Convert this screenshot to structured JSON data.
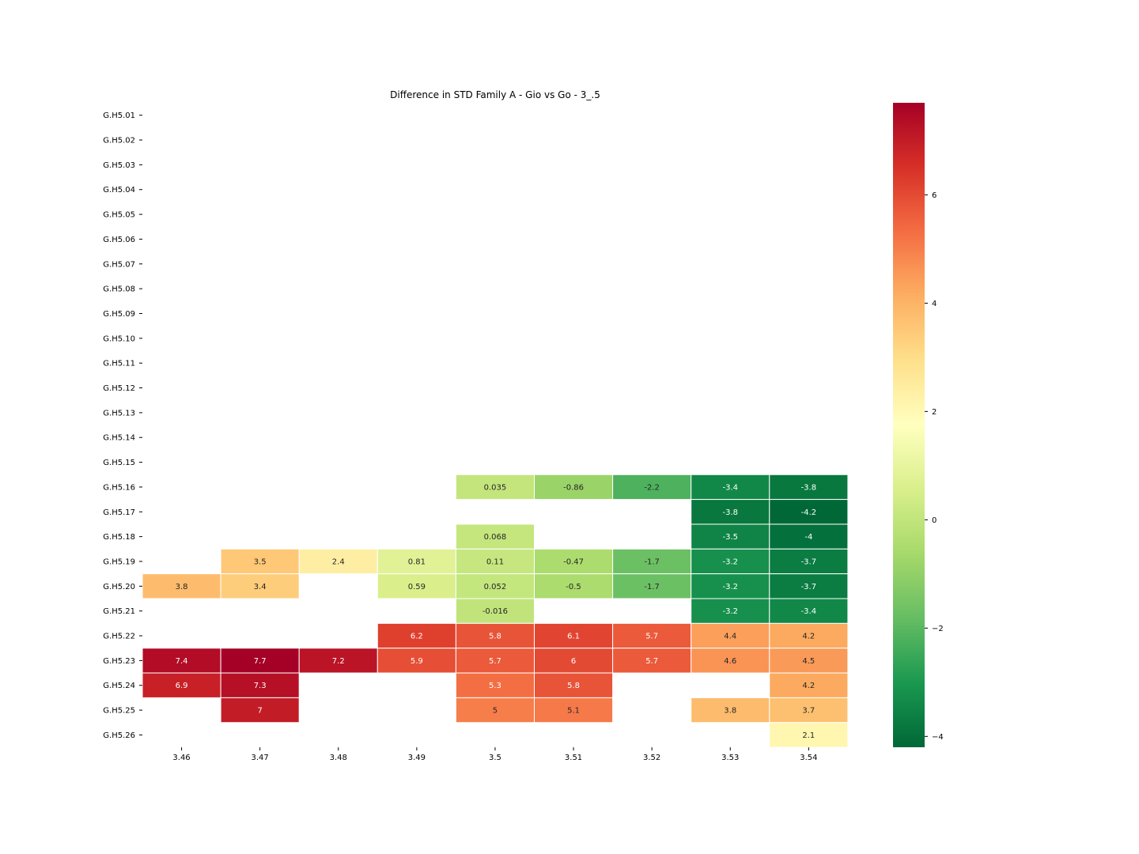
{
  "chart_data": {
    "type": "heatmap",
    "title": "Difference in STD Family A - Gio vs Go - 3_.5",
    "xlabel": "",
    "ylabel": "",
    "x_labels": [
      "3.46",
      "3.47",
      "3.48",
      "3.49",
      "3.5",
      "3.51",
      "3.52",
      "3.53",
      "3.54"
    ],
    "y_labels": [
      "G.H5.01",
      "G.H5.02",
      "G.H5.03",
      "G.H5.04",
      "G.H5.05",
      "G.H5.06",
      "G.H5.07",
      "G.H5.08",
      "G.H5.09",
      "G.H5.10",
      "G.H5.11",
      "G.H5.12",
      "G.H5.13",
      "G.H5.14",
      "G.H5.15",
      "G.H5.16",
      "G.H5.17",
      "G.H5.18",
      "G.H5.19",
      "G.H5.20",
      "G.H5.21",
      "G.H5.22",
      "G.H5.23",
      "G.H5.24",
      "G.H5.25",
      "G.H5.26"
    ],
    "values": [
      [
        null,
        null,
        null,
        null,
        null,
        null,
        null,
        null,
        null
      ],
      [
        null,
        null,
        null,
        null,
        null,
        null,
        null,
        null,
        null
      ],
      [
        null,
        null,
        null,
        null,
        null,
        null,
        null,
        null,
        null
      ],
      [
        null,
        null,
        null,
        null,
        null,
        null,
        null,
        null,
        null
      ],
      [
        null,
        null,
        null,
        null,
        null,
        null,
        null,
        null,
        null
      ],
      [
        null,
        null,
        null,
        null,
        null,
        null,
        null,
        null,
        null
      ],
      [
        null,
        null,
        null,
        null,
        null,
        null,
        null,
        null,
        null
      ],
      [
        null,
        null,
        null,
        null,
        null,
        null,
        null,
        null,
        null
      ],
      [
        null,
        null,
        null,
        null,
        null,
        null,
        null,
        null,
        null
      ],
      [
        null,
        null,
        null,
        null,
        null,
        null,
        null,
        null,
        null
      ],
      [
        null,
        null,
        null,
        null,
        null,
        null,
        null,
        null,
        null
      ],
      [
        null,
        null,
        null,
        null,
        null,
        null,
        null,
        null,
        null
      ],
      [
        null,
        null,
        null,
        null,
        null,
        null,
        null,
        null,
        null
      ],
      [
        null,
        null,
        null,
        null,
        null,
        null,
        null,
        null,
        null
      ],
      [
        null,
        null,
        null,
        null,
        null,
        null,
        null,
        null,
        null
      ],
      [
        null,
        null,
        null,
        null,
        0.035,
        -0.86,
        -2.2,
        -3.4,
        -3.8
      ],
      [
        null,
        null,
        null,
        null,
        null,
        null,
        null,
        -3.8,
        -4.2
      ],
      [
        null,
        null,
        null,
        null,
        0.068,
        null,
        null,
        -3.5,
        -4
      ],
      [
        null,
        3.5,
        2.4,
        0.81,
        0.11,
        -0.47,
        -1.7,
        -3.2,
        -3.7
      ],
      [
        3.8,
        3.4,
        null,
        0.59,
        0.052,
        -0.5,
        -1.7,
        -3.2,
        -3.7
      ],
      [
        null,
        null,
        null,
        null,
        -0.016,
        null,
        null,
        -3.2,
        -3.4
      ],
      [
        null,
        null,
        null,
        6.2,
        5.8,
        6.1,
        5.7,
        4.4,
        4.2
      ],
      [
        7.4,
        7.7,
        7.2,
        5.9,
        5.7,
        6,
        5.7,
        4.6,
        4.5
      ],
      [
        6.9,
        7.3,
        null,
        null,
        5.3,
        5.8,
        null,
        null,
        4.2
      ],
      [
        null,
        7,
        null,
        null,
        5,
        5.1,
        null,
        3.8,
        3.7
      ],
      [
        null,
        null,
        null,
        null,
        null,
        null,
        null,
        null,
        2.1
      ]
    ],
    "colormap": "RdYlGn_r",
    "vmin": -4.2,
    "vmax": 7.7,
    "colorbar_ticks": [
      -4,
      -2,
      0,
      2,
      4,
      6
    ],
    "colorbar_tick_labels": [
      "−4",
      "−2",
      "0",
      "2",
      "4",
      "6"
    ]
  }
}
